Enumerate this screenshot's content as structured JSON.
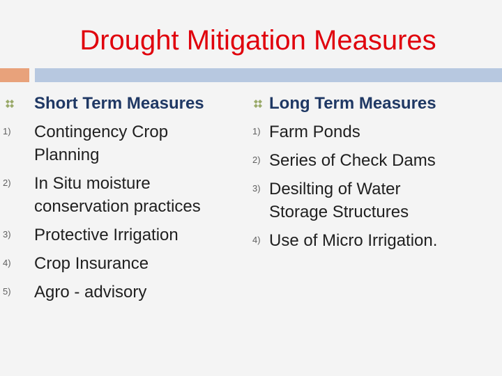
{
  "title": "Drought Mitigation Measures",
  "left": {
    "heading": "Short Term Measures",
    "items": [
      {
        "num": "1)",
        "text": "Contingency Crop Planning"
      },
      {
        "num": "2)",
        "text": "In Situ moisture conservation practices"
      },
      {
        "num": "3)",
        "text": "Protective Irrigation"
      },
      {
        "num": "4)",
        "text": "Crop Insurance"
      },
      {
        "num": "5)",
        "text": "Agro - advisory"
      }
    ]
  },
  "right": {
    "heading": "Long Term Measures",
    "items": [
      {
        "num": "1)",
        "text": "Farm Ponds"
      },
      {
        "num": "2)",
        "text": "Series of Check Dams"
      },
      {
        "num": "3)",
        "text": "Desilting of Water Storage Structures"
      },
      {
        "num": "4)",
        "text": "Use of Micro Irrigation."
      }
    ]
  },
  "colors": {
    "title": "#e0000c",
    "heading": "#1f3864",
    "accent_bar": "#e8a27b",
    "bar": "#b7c8e0"
  }
}
